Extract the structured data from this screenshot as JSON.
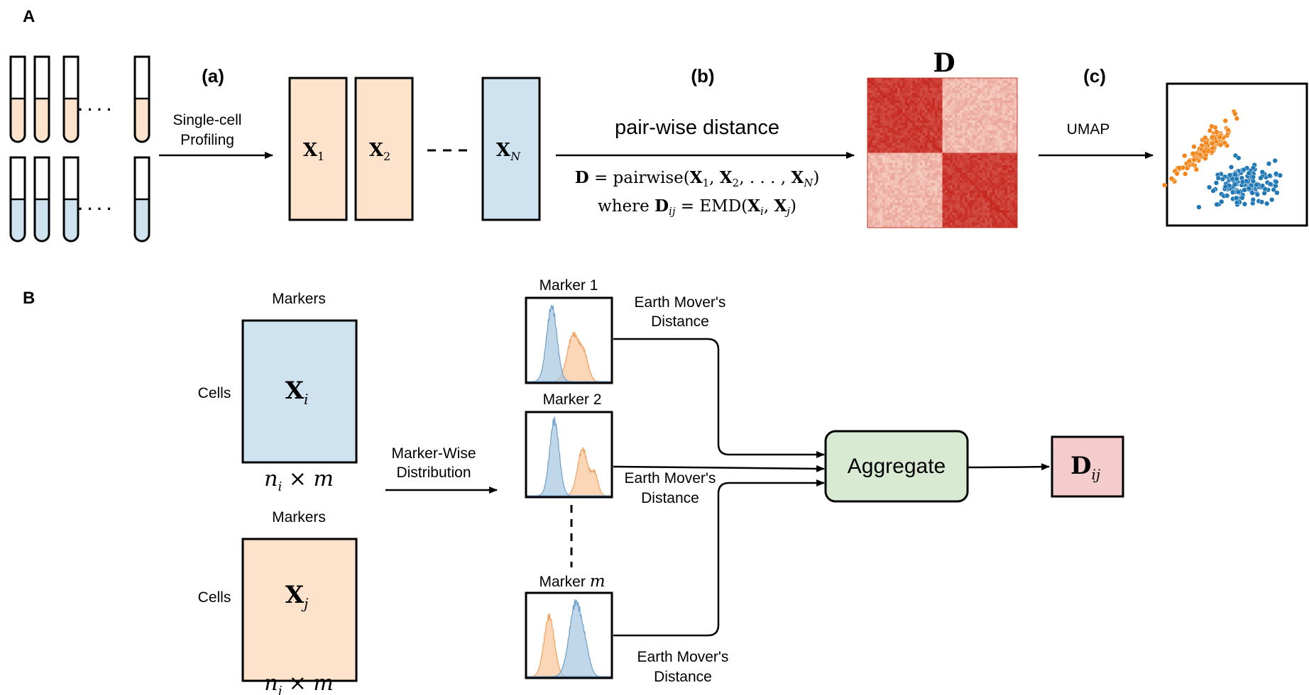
{
  "panel_a": {
    "label": "A",
    "step_a": {
      "label": "(a)",
      "caption_line1": "Single-cell",
      "caption_line2": "Profiling"
    },
    "matrices": {
      "x1": {
        "sym": "X",
        "sub": "1"
      },
      "x2": {
        "sym": "X",
        "sub": "2"
      },
      "xn": {
        "sym": "X",
        "sub": "N"
      }
    },
    "step_b": {
      "label": "(b)",
      "caption": "pair-wise distance",
      "formula1": {
        "lhs": "D",
        "eq": " = pairwise(",
        "a": "X",
        "asub": "1",
        "comma1": ", ",
        "b": "X",
        "bsub": "2",
        "dots": ", . . . , ",
        "c": "X",
        "csub": "N",
        "close": ")"
      },
      "formula2": {
        "pre": "where ",
        "d": "D",
        "dsub": "ij",
        "eq": " = EMD(",
        "a": "X",
        "asub": "i",
        "comma": ", ",
        "b": "X",
        "bsub": "j",
        "close": ")"
      }
    },
    "heatmap_label": "D",
    "step_c": {
      "label": "(c)",
      "caption": "UMAP"
    }
  },
  "panel_b": {
    "label": "B",
    "xi": {
      "markers": "Markers",
      "cells": "Cells",
      "sym": "X",
      "sub": "i",
      "dim_n": "n",
      "dim_sub": "i",
      "dim_times": "×",
      "dim_m": "m"
    },
    "xj": {
      "markers": "Markers",
      "cells": "Cells",
      "sym": "X",
      "sub": "j",
      "dim_n": "n",
      "dim_sub": "j",
      "dim_times": "×",
      "dim_m": "m"
    },
    "marker_wise_line1": "Marker-Wise",
    "marker_wise_line2": "Distribution",
    "marker1": "Marker 1",
    "marker2": "Marker 2",
    "markerm_prefix": "Marker ",
    "markerm_var": "m",
    "emd1_line1": "Earth Mover's",
    "emd1_line2": "Distance",
    "emd2_line1": "Earth Mover's",
    "emd2_line2": "Distance",
    "emd3_line1": "Earth Mover's",
    "emd3_line2": "Distance",
    "aggregate": "Aggregate",
    "dij": {
      "sym": "D",
      "sub": "ij"
    }
  },
  "colors": {
    "orange_fill": "#fde3cc",
    "blue_fill": "#cfe2ef",
    "orange_dot": "#f58518",
    "blue_dot": "#1f77b4",
    "aggregate_fill": "#d9ead3",
    "dij_fill": "#f4cccc",
    "heat_dark": "#d4402c",
    "heat_light": "#fce1d6"
  }
}
